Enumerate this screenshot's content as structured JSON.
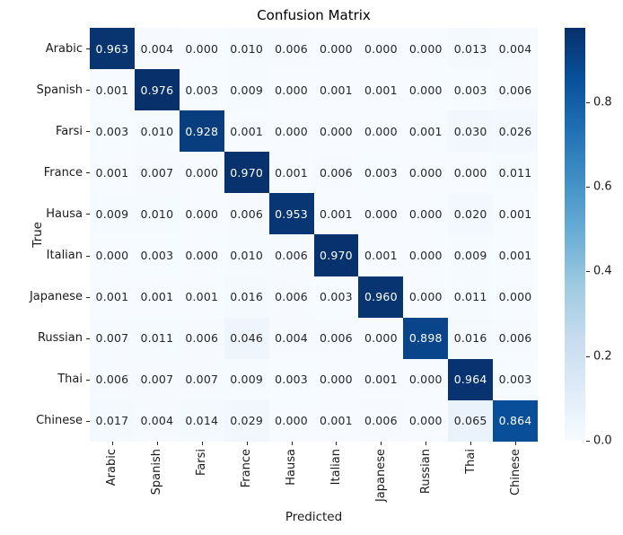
{
  "chart_data": {
    "type": "heatmap",
    "title": "Confusion Matrix",
    "xlabel": "Predicted",
    "ylabel": "True",
    "x_categories": [
      "Arabic",
      "Spanish",
      "Farsi",
      "France",
      "Hausa",
      "Italian",
      "Japanese",
      "Russian",
      "Thai",
      "Chinese"
    ],
    "y_categories": [
      "Arabic",
      "Spanish",
      "Farsi",
      "France",
      "Hausa",
      "Italian",
      "Japanese",
      "Russian",
      "Thai",
      "Chinese"
    ],
    "matrix": [
      [
        0.963,
        0.004,
        0.0,
        0.01,
        0.006,
        0.0,
        0.0,
        0.0,
        0.013,
        0.004
      ],
      [
        0.001,
        0.976,
        0.003,
        0.009,
        0.0,
        0.001,
        0.001,
        0.0,
        0.003,
        0.006
      ],
      [
        0.003,
        0.01,
        0.928,
        0.001,
        0.0,
        0.0,
        0.0,
        0.001,
        0.03,
        0.026
      ],
      [
        0.001,
        0.007,
        0.0,
        0.97,
        0.001,
        0.006,
        0.003,
        0.0,
        0.0,
        0.011
      ],
      [
        0.009,
        0.01,
        0.0,
        0.006,
        0.953,
        0.001,
        0.0,
        0.0,
        0.02,
        0.001
      ],
      [
        0.0,
        0.003,
        0.0,
        0.01,
        0.006,
        0.97,
        0.001,
        0.0,
        0.009,
        0.001
      ],
      [
        0.001,
        0.001,
        0.001,
        0.016,
        0.006,
        0.003,
        0.96,
        0.0,
        0.011,
        0.0
      ],
      [
        0.007,
        0.011,
        0.006,
        0.046,
        0.004,
        0.006,
        0.0,
        0.898,
        0.016,
        0.006
      ],
      [
        0.006,
        0.007,
        0.007,
        0.009,
        0.003,
        0.0,
        0.001,
        0.0,
        0.964,
        0.003
      ],
      [
        0.017,
        0.004,
        0.014,
        0.029,
        0.0,
        0.001,
        0.006,
        0.0,
        0.065,
        0.864
      ]
    ],
    "annotation_decimals": 3,
    "colormap": "Blues",
    "vmin": 0.0,
    "vmax": 0.976,
    "grid": false,
    "legend_position": "right-colorbar",
    "colorbar": {
      "ticks": [
        0.0,
        0.2,
        0.4,
        0.6,
        0.8
      ],
      "tick_labels": [
        "0.0",
        "0.2",
        "0.4",
        "0.6",
        "0.8"
      ]
    },
    "colors": {
      "cmap_anchors": [
        "#f7fbff",
        "#deebf7",
        "#c6dbef",
        "#9ecae1",
        "#6baed6",
        "#4292c6",
        "#2171b5",
        "#08519c",
        "#08306b"
      ],
      "annotation_dark": "#262626",
      "annotation_light": "#ffffff",
      "tick_color": "#262626",
      "figure_background": "#ffffff"
    }
  }
}
